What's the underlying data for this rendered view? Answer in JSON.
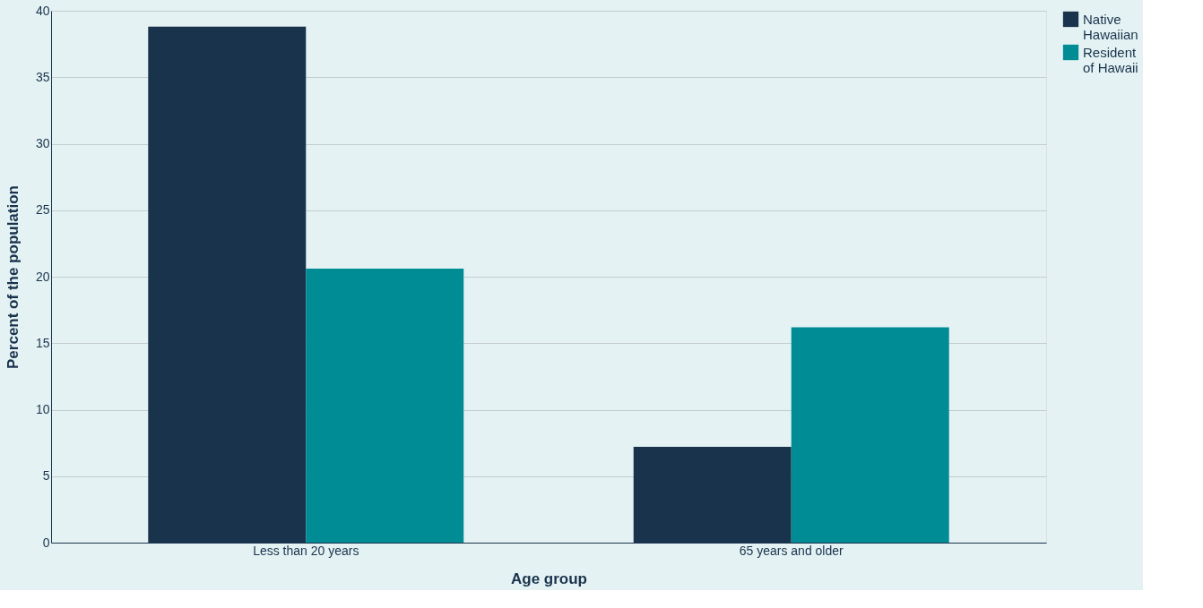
{
  "chart_data": {
    "type": "bar",
    "xlabel": "Age group",
    "ylabel": "Percent of the population",
    "categories": [
      "Less than 20 years",
      "65 years and older"
    ],
    "series": [
      {
        "name": "Native Hawaiian",
        "color": "#19334d",
        "values": [
          38.8,
          7.2
        ]
      },
      {
        "name": "Resident of Hawaii",
        "color": "#008c95",
        "values": [
          20.6,
          16.2
        ]
      }
    ],
    "ylim": [
      0,
      40
    ],
    "yticks": [
      0,
      5,
      10,
      15,
      20,
      25,
      30,
      35,
      40
    ],
    "grid": "y",
    "legend": "right"
  }
}
